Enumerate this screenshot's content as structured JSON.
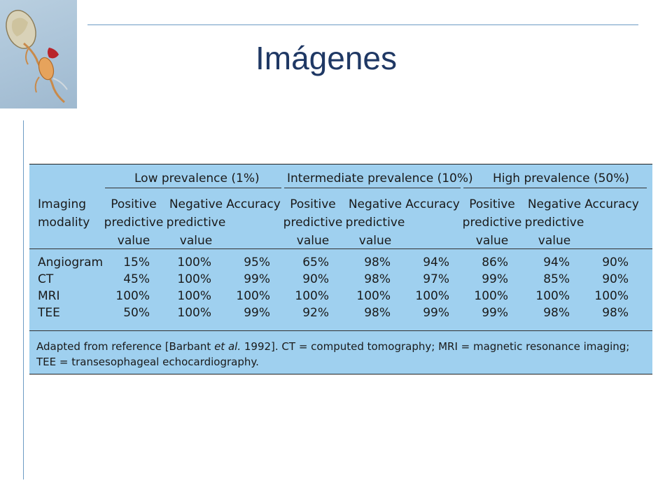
{
  "slide": {
    "title": "Imágenes"
  },
  "logo": {
    "icon": "embryo-illustration-icon"
  },
  "table": {
    "group_headers": [
      "Low prevalence (1%)",
      "Intermediate prevalence (10%)",
      "High prevalence (50%)"
    ],
    "column_headers": [
      "Imaging modality",
      "Positive predictive value",
      "Negative predictive value",
      "Accuracy",
      "Positive predictive value",
      "Negative predictive value",
      "Accuracy",
      "Positive predictive value",
      "Negative predictive value",
      "Accuracy"
    ],
    "rows": [
      [
        "Angiogram",
        "15%",
        "100%",
        "95%",
        "65%",
        "98%",
        "94%",
        "86%",
        "94%",
        "90%"
      ],
      [
        "CT",
        "45%",
        "100%",
        "99%",
        "90%",
        "98%",
        "97%",
        "99%",
        "85%",
        "90%"
      ],
      [
        "MRI",
        "100%",
        "100%",
        "100%",
        "100%",
        "100%",
        "100%",
        "100%",
        "100%",
        "100%"
      ],
      [
        "TEE",
        "50%",
        "100%",
        "99%",
        "92%",
        "98%",
        "99%",
        "99%",
        "98%",
        "98%"
      ]
    ],
    "footnote": {
      "before": "Adapted from reference [Barbant ",
      "italic": "et al.",
      "after": " 1992]. CT = computed tomography; MRI = magnetic resonance imaging;",
      "line2": "TEE = transesophageal echocardiography."
    }
  },
  "colors": {
    "title": "#1f3864",
    "rule": "#6d9cc4",
    "table_bg": "#9fd0ef"
  }
}
